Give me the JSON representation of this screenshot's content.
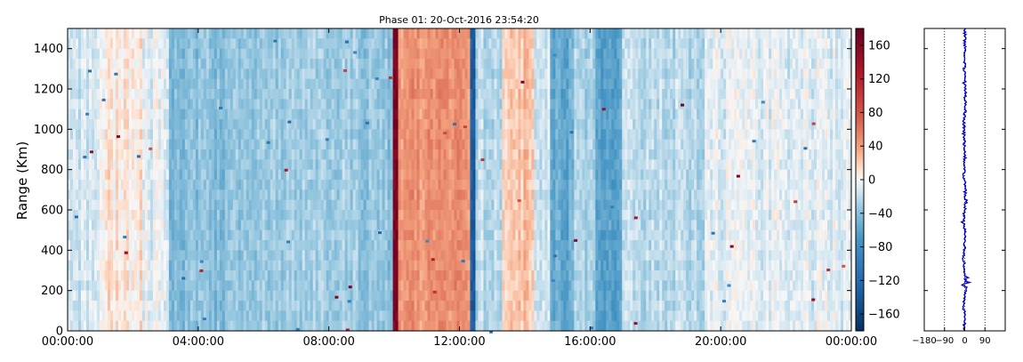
{
  "chart_data": [
    {
      "type": "heatmap",
      "title": "Phase 01: 20-Oct-2016 23:54:20",
      "xlabel": "",
      "ylabel": "Range (Km)",
      "x_tick_labels": [
        "00:00:00",
        "04:00:00",
        "08:00:00",
        "12:00:00",
        "16:00:00",
        "20:00:00",
        "00:00:00"
      ],
      "x_range_hours": [
        0,
        24
      ],
      "y_ticks": [
        0,
        200,
        400,
        600,
        800,
        1000,
        1200,
        1400
      ],
      "ylim": [
        0,
        1500
      ],
      "colorbar": {
        "colormap": "RdBu_r",
        "range": [
          -180,
          180
        ],
        "ticks": [
          -160,
          -120,
          -80,
          -40,
          0,
          40,
          80,
          120,
          160
        ]
      },
      "column_profile": [
        {
          "from_h": 0.0,
          "to_h": 1.0,
          "value": -12
        },
        {
          "from_h": 1.0,
          "to_h": 2.3,
          "value": 8
        },
        {
          "from_h": 2.3,
          "to_h": 3.1,
          "value": -6
        },
        {
          "from_h": 3.1,
          "to_h": 6.0,
          "value": -40
        },
        {
          "from_h": 6.0,
          "to_h": 9.0,
          "value": -32
        },
        {
          "from_h": 9.0,
          "to_h": 10.0,
          "value": -38
        },
        {
          "from_h": 10.0,
          "to_h": 10.15,
          "value": 170
        },
        {
          "from_h": 10.15,
          "to_h": 12.3,
          "value": 45
        },
        {
          "from_h": 12.3,
          "to_h": 12.45,
          "value": -135
        },
        {
          "from_h": 12.45,
          "to_h": 13.3,
          "value": -22
        },
        {
          "from_h": 13.3,
          "to_h": 14.3,
          "value": 22
        },
        {
          "from_h": 14.3,
          "to_h": 14.8,
          "value": -18
        },
        {
          "from_h": 14.8,
          "to_h": 15.5,
          "value": -55
        },
        {
          "from_h": 15.5,
          "to_h": 16.2,
          "value": -28
        },
        {
          "from_h": 16.2,
          "to_h": 17.0,
          "value": -62
        },
        {
          "from_h": 17.0,
          "to_h": 19.5,
          "value": -22
        },
        {
          "from_h": 19.5,
          "to_h": 24.0,
          "value": -8
        }
      ]
    },
    {
      "type": "line",
      "title": "",
      "xlabel": "",
      "ylabel": "",
      "x_tick_labels": [
        "-180",
        "-90",
        "0",
        "90"
      ],
      "xlim": [
        -180,
        180
      ],
      "ylim": [
        0,
        1500
      ],
      "reference_lines_x": [
        -90,
        0,
        90
      ],
      "series": [
        {
          "color": "#0000cc",
          "x": [
            0,
            -4,
            5,
            -6,
            3,
            -8,
            6,
            -3,
            2,
            -5,
            4,
            -2,
            1
          ],
          "y": [
            0,
            120,
            240,
            360,
            480,
            540,
            640,
            760,
            880,
            1000,
            1120,
            1280,
            1500
          ]
        }
      ]
    }
  ]
}
